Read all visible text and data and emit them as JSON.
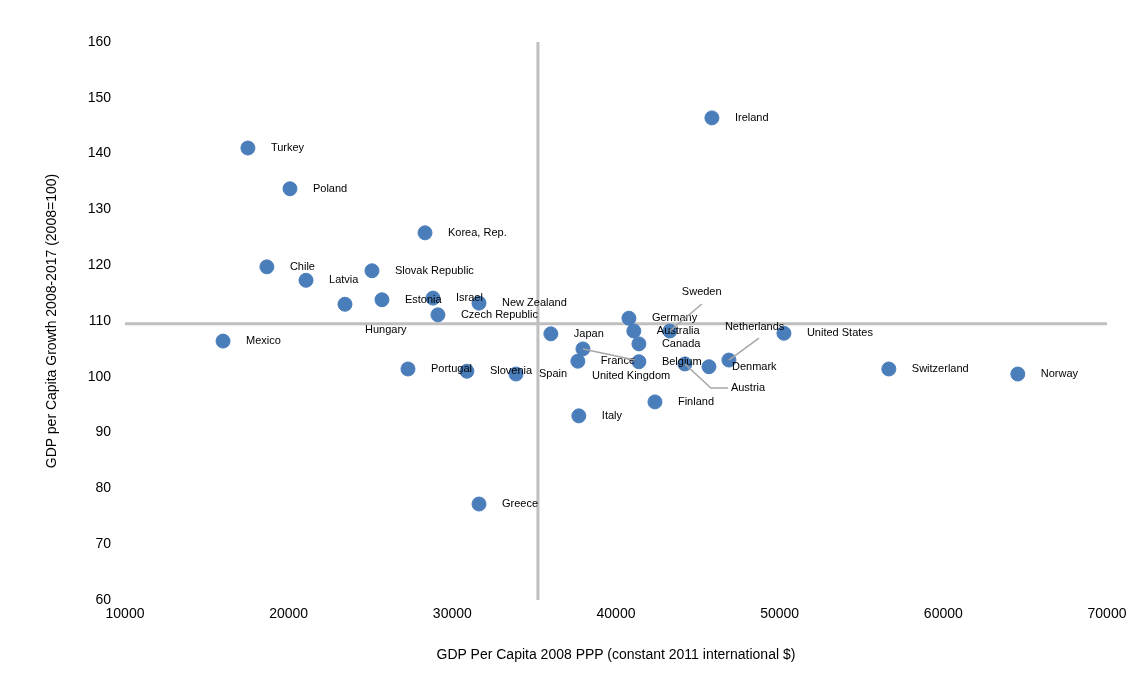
{
  "chart_data": {
    "type": "scatter",
    "xlabel": "GDP Per Capita 2008 PPP (constant 2011 international $)",
    "ylabel": "GDP per Capita Growth 2008-2017 (2008=100)",
    "x": [
      17510,
      20080,
      28330,
      18670,
      21060,
      25090,
      23440,
      25700,
      28820,
      31630,
      29120,
      15990,
      27290,
      30890,
      33890,
      36020,
      37670,
      37980,
      37730,
      31630,
      40790,
      41090,
      41400,
      43290,
      41400,
      44210,
      45680,
      46900,
      50260,
      42380,
      45860,
      56670,
      64550
    ],
    "values": [
      141.0,
      133.7,
      125.8,
      119.7,
      117.3,
      119.0,
      113.0,
      113.8,
      114.1,
      113.2,
      111.1,
      106.4,
      101.4,
      101.0,
      100.5,
      107.7,
      102.8,
      105.0,
      93.0,
      77.2,
      110.5,
      108.2,
      105.9,
      108.2,
      102.7,
      102.3,
      101.8,
      103.0,
      107.8,
      95.5,
      146.4,
      101.4,
      100.5
    ],
    "color": "#4a7ebb",
    "marker": "circle",
    "grid": false,
    "legend": false,
    "xlim": [
      10000,
      70000
    ],
    "xticks": [
      10000,
      20000,
      30000,
      40000,
      50000,
      60000,
      70000
    ],
    "ylim": [
      60,
      160
    ],
    "yticks": [
      60,
      70,
      80,
      90,
      100,
      110,
      120,
      130,
      140,
      150,
      160
    ],
    "ref_lines": [
      {
        "axis": "x",
        "value": 35230,
        "color": "#bfbfbf"
      },
      {
        "axis": "y",
        "value": 109.5,
        "color": "#bfbfbf"
      }
    ],
    "annotations": [
      {
        "text": "Turkey",
        "x": 17510,
        "y": 141.0
      },
      {
        "text": "Poland",
        "x": 20080,
        "y": 133.7
      },
      {
        "text": "Korea, Rep.",
        "x": 28330,
        "y": 125.8
      },
      {
        "text": "Chile",
        "x": 18670,
        "y": 119.7
      },
      {
        "text": "Latvia",
        "x": 21060,
        "y": 117.3
      },
      {
        "text": "Slovak Republic",
        "x": 25090,
        "y": 119.0
      },
      {
        "text": "Hungary",
        "x": 23440,
        "y": 113.0
      },
      {
        "text": "Estonia",
        "x": 25700,
        "y": 113.8
      },
      {
        "text": "Israel",
        "x": 28820,
        "y": 114.1
      },
      {
        "text": "New Zealand",
        "x": 31630,
        "y": 113.2
      },
      {
        "text": "Czech Republic",
        "x": 29120,
        "y": 111.1
      },
      {
        "text": "Mexico",
        "x": 15990,
        "y": 106.4
      },
      {
        "text": "Portugal",
        "x": 27290,
        "y": 101.4
      },
      {
        "text": "Slovenia",
        "x": 30890,
        "y": 101.0
      },
      {
        "text": "Spain",
        "x": 33890,
        "y": 100.5
      },
      {
        "text": "Japan",
        "x": 36020,
        "y": 107.7
      },
      {
        "text": "France",
        "x": 37670,
        "y": 102.8
      },
      {
        "text": "United Kingdom",
        "x": 37980,
        "y": 105.0
      },
      {
        "text": "Italy",
        "x": 37730,
        "y": 93.0
      },
      {
        "text": "Greece",
        "x": 31630,
        "y": 77.2
      },
      {
        "text": "Germany",
        "x": 40790,
        "y": 110.5
      },
      {
        "text": "Australia",
        "x": 41090,
        "y": 108.2
      },
      {
        "text": "Canada",
        "x": 41400,
        "y": 105.9
      },
      {
        "text": "Sweden",
        "x": 43290,
        "y": 108.2
      },
      {
        "text": "Belgium",
        "x": 41400,
        "y": 102.7
      },
      {
        "text": "Austria",
        "x": 44210,
        "y": 102.3
      },
      {
        "text": "Denmark",
        "x": 45680,
        "y": 101.8
      },
      {
        "text": "Netherlands",
        "x": 46900,
        "y": 103.0
      },
      {
        "text": "United States",
        "x": 50260,
        "y": 107.8
      },
      {
        "text": "Finland",
        "x": 42380,
        "y": 95.5
      },
      {
        "text": "Ireland",
        "x": 45860,
        "y": 146.4
      },
      {
        "text": "Switzerland",
        "x": 56670,
        "y": 101.4
      },
      {
        "text": "Norway",
        "x": 64550,
        "y": 100.5
      }
    ]
  }
}
